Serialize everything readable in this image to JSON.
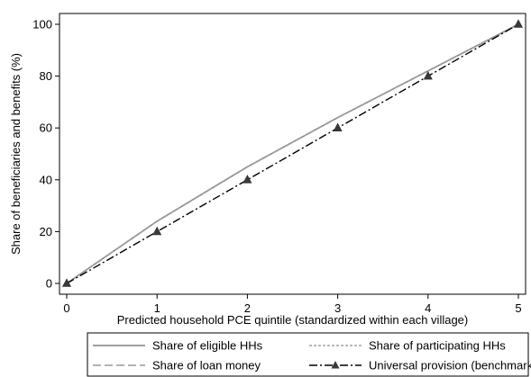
{
  "chart_data": {
    "type": "line",
    "xlabel": "Predicted household PCE quintile (standardized within each village)",
    "ylabel": "Share of beneficiaries and benefits (%)",
    "x": [
      0,
      1,
      2,
      3,
      4,
      5
    ],
    "xticks": [
      "0",
      "1",
      "2",
      "3",
      "4",
      "5"
    ],
    "yticks": [
      "0",
      "20",
      "40",
      "60",
      "80",
      "100"
    ],
    "xlim": [
      0,
      5
    ],
    "ylim": [
      0,
      100
    ],
    "grid": false,
    "legend_position": "bottom",
    "series": [
      {
        "name": "Share of eligible HHs",
        "values": [
          0,
          24,
          45,
          64,
          82,
          100
        ],
        "color": "#7f7f7f",
        "style": "solid"
      },
      {
        "name": "Share of participating HHs",
        "values": [
          0,
          24,
          45,
          64,
          82,
          100
        ],
        "color": "#a0a0a0",
        "style": "dotted"
      },
      {
        "name": "Share of loan money",
        "values": [
          0,
          24,
          45,
          64,
          82,
          100
        ],
        "color": "#9a9a9a",
        "style": "dashed"
      },
      {
        "name": "Universal provision (benchmark)",
        "values": [
          0,
          20,
          40,
          60,
          80,
          100
        ],
        "color": "#000000",
        "style": "dashdot",
        "marker": "triangle"
      }
    ]
  }
}
